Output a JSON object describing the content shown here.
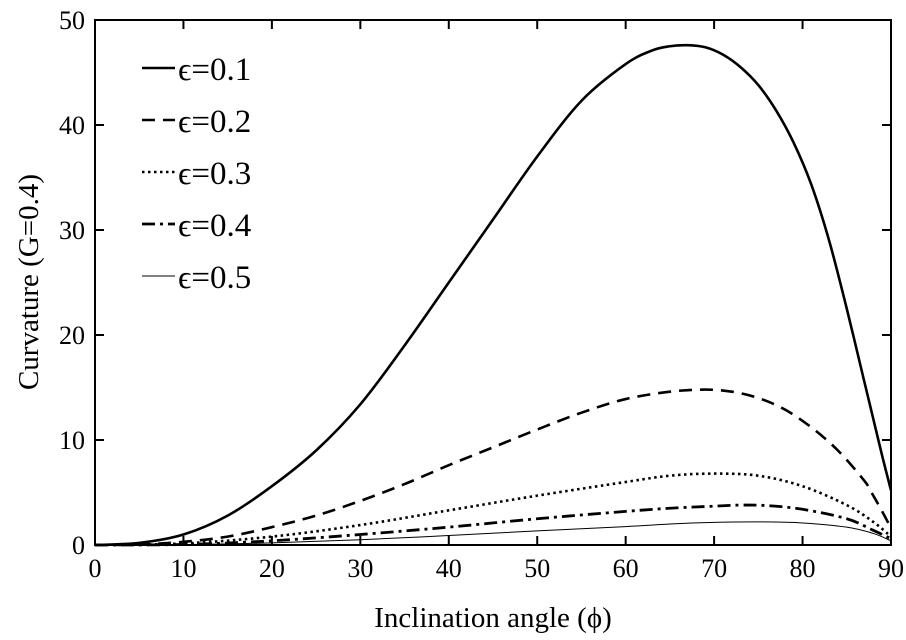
{
  "chart_data": {
    "type": "line",
    "xlabel": "Inclination angle (ϕ)",
    "ylabel": "Curvature (G=0.4)",
    "xlim": [
      0,
      90
    ],
    "ylim": [
      0,
      50
    ],
    "xticks": [
      0,
      10,
      20,
      30,
      40,
      50,
      60,
      70,
      80,
      90
    ],
    "yticks": [
      0,
      10,
      20,
      30,
      40,
      50
    ],
    "xtick_labels": [
      "0",
      "10",
      "20",
      "30",
      "40",
      "50",
      "60",
      "70",
      "80",
      "90"
    ],
    "ytick_labels": [
      "0",
      "10",
      "20",
      "30",
      "40",
      "50"
    ],
    "grid": false,
    "legend_position": "top-left",
    "series": [
      {
        "name": "ϵ=0.1",
        "style": "solid-thick",
        "x": [
          0,
          5,
          10,
          15,
          20,
          25,
          30,
          35,
          40,
          45,
          50,
          55,
          60,
          63,
          65,
          67,
          69,
          71,
          73,
          75,
          77,
          79,
          81,
          83,
          85,
          87,
          88,
          89,
          90
        ],
        "y": [
          0,
          0.2,
          1.0,
          2.8,
          5.6,
          9.0,
          13.4,
          19.0,
          25.0,
          31.0,
          37.0,
          42.3,
          45.8,
          47.1,
          47.5,
          47.6,
          47.4,
          46.7,
          45.5,
          43.8,
          41.4,
          38.3,
          34.3,
          29.0,
          22.5,
          15.5,
          12.0,
          8.5,
          5.2
        ]
      },
      {
        "name": "ϵ=0.2",
        "style": "dashed",
        "x": [
          0,
          5,
          10,
          15,
          20,
          25,
          30,
          35,
          40,
          45,
          50,
          55,
          60,
          65,
          69,
          72,
          75,
          78,
          81,
          84,
          87,
          88,
          89,
          90
        ],
        "y": [
          0,
          0.05,
          0.3,
          0.8,
          1.7,
          2.8,
          4.2,
          5.8,
          7.6,
          9.3,
          11.0,
          12.6,
          13.9,
          14.6,
          14.8,
          14.6,
          14.0,
          12.9,
          11.2,
          9.0,
          6.1,
          4.7,
          3.2,
          1.6
        ]
      },
      {
        "name": "ϵ=0.3",
        "style": "dotted",
        "x": [
          0,
          10,
          20,
          30,
          40,
          50,
          60,
          65,
          70,
          75,
          80,
          85,
          88,
          90
        ],
        "y": [
          0,
          0.15,
          0.8,
          1.9,
          3.3,
          4.7,
          6.0,
          6.6,
          6.8,
          6.6,
          5.6,
          3.8,
          2.2,
          0.8
        ]
      },
      {
        "name": "ϵ=0.4",
        "style": "dash-dot",
        "x": [
          0,
          10,
          20,
          30,
          40,
          50,
          60,
          65,
          70,
          73,
          76,
          80,
          85,
          88,
          90
        ],
        "y": [
          0,
          0.05,
          0.4,
          1.0,
          1.7,
          2.5,
          3.2,
          3.5,
          3.7,
          3.8,
          3.75,
          3.4,
          2.5,
          1.4,
          0.6
        ]
      },
      {
        "name": "ϵ=0.5",
        "style": "solid-thin",
        "x": [
          0,
          10,
          20,
          30,
          40,
          50,
          60,
          65,
          70,
          75,
          80,
          85,
          88,
          90
        ],
        "y": [
          0,
          0.03,
          0.2,
          0.5,
          0.9,
          1.35,
          1.75,
          2.0,
          2.15,
          2.2,
          2.1,
          1.7,
          1.1,
          0.4
        ]
      }
    ]
  }
}
